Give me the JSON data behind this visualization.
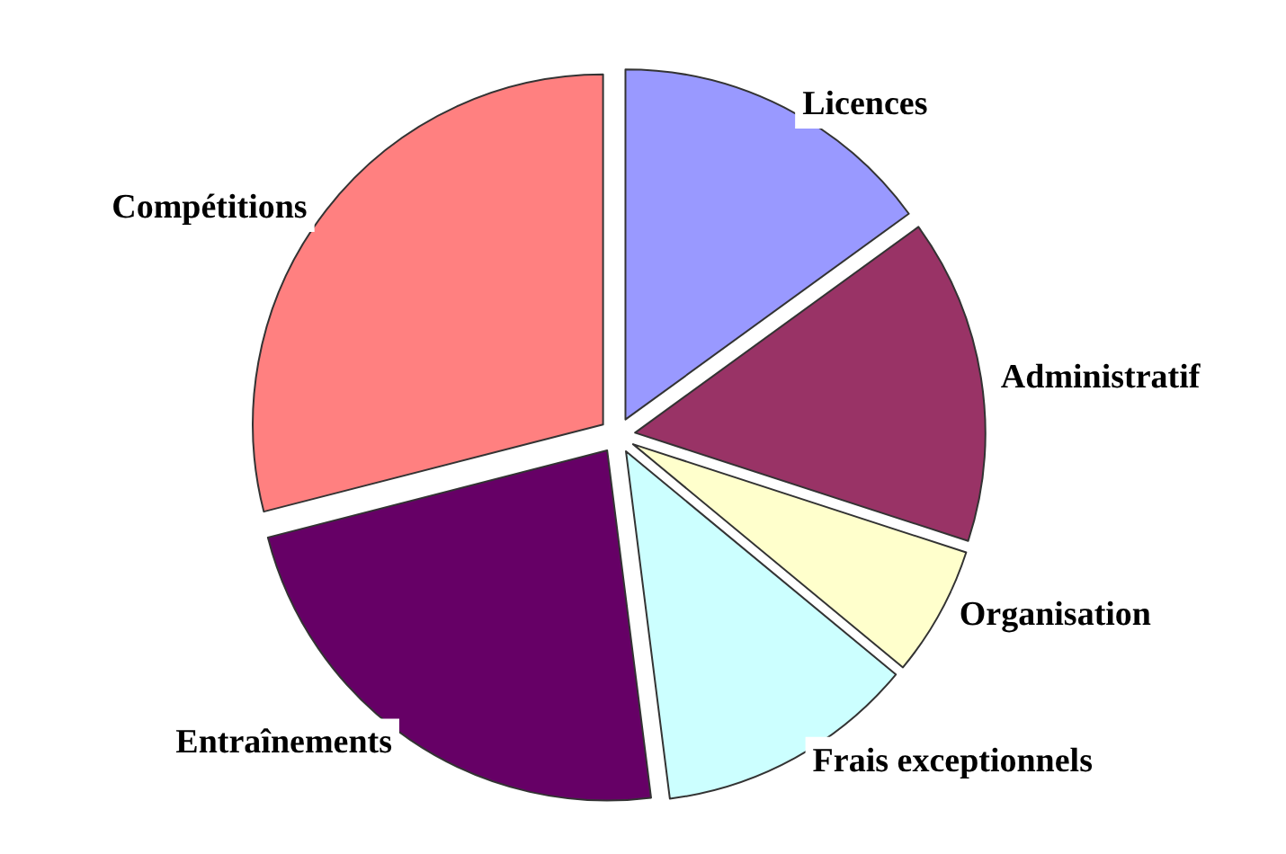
{
  "chart_data": {
    "type": "pie",
    "categories": [
      "Licences",
      "Administratif",
      "Organisation",
      "Frais exceptionnels",
      "Entraînements",
      "Compétitions"
    ],
    "values": [
      15,
      15,
      6,
      12,
      23,
      29
    ],
    "colors": [
      "#9999ff",
      "#993366",
      "#ffffcc",
      "#ccffff",
      "#660066",
      "#ff8080"
    ]
  }
}
